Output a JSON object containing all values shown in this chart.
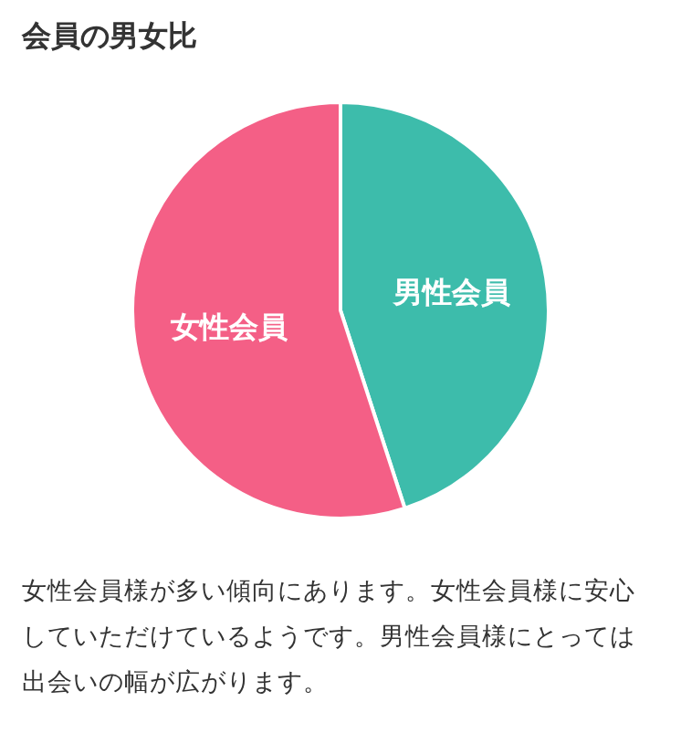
{
  "chart_data": {
    "type": "pie",
    "title": "会員の男女比",
    "categories": [
      "男性会員",
      "女性会員"
    ],
    "values": [
      45,
      55
    ],
    "colors": [
      "#3dbcab",
      "#f45f86"
    ],
    "annotations": [
      "女性会員様が多い傾向にあります。女性会員様に安心していただけているようです。男性会員様にとっては出会いの幅が広がります。"
    ]
  }
}
